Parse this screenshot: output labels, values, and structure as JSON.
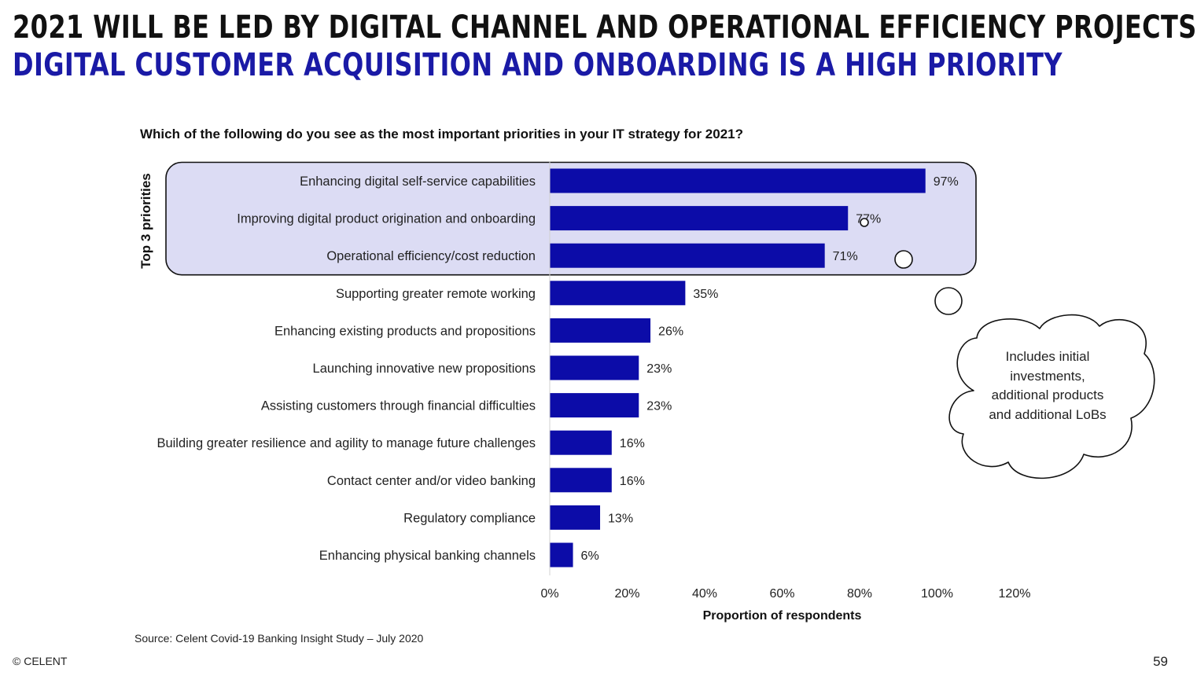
{
  "slide": {
    "title": "2021 WILL BE LED BY DIGITAL CHANNEL AND OPERATIONAL EFFICIENCY PROJECTS",
    "subtitle": "DIGITAL CUSTOMER ACQUISITION AND ONBOARDING IS A HIGH PRIORITY",
    "question": "Which of the following do you see as the most important priorities in your IT strategy for 2021?",
    "source": "Source: Celent Covid-19 Banking Insight Study – July 2020",
    "footer_left": "© CELENT",
    "page_number": "59"
  },
  "colors": {
    "bar": "#0c0ca8",
    "highlight_fill": "#dcdcf4",
    "title": "#111111",
    "subtitle": "#1a1aa6"
  },
  "callouts": {
    "highlight_label": "Top 3 priorities",
    "cloud_text": "Includes initial investments, additional products and additional LoBs"
  },
  "chart_data": {
    "type": "bar",
    "orientation": "horizontal",
    "categories": [
      "Enhancing digital self-service capabilities",
      "Improving digital product origination and onboarding",
      "Operational efficiency/cost reduction",
      "Supporting greater remote working",
      "Enhancing existing products and propositions",
      "Launching innovative new propositions",
      "Assisting customers through financial difficulties",
      "Building greater resilience and agility to manage future challenges",
      "Contact center and/or video banking",
      "Regulatory compliance",
      "Enhancing physical banking channels"
    ],
    "values": [
      97,
      77,
      71,
      35,
      26,
      23,
      23,
      16,
      16,
      13,
      6
    ],
    "data_labels": [
      "97%",
      "77%",
      "71%",
      "35%",
      "26%",
      "23%",
      "23%",
      "16%",
      "16%",
      "13%",
      "6%"
    ],
    "xlabel": "Proportion of respondents",
    "xlim": [
      0,
      120
    ],
    "x_ticks": [
      0,
      20,
      40,
      60,
      80,
      100,
      120
    ],
    "x_tick_labels": [
      "0%",
      "20%",
      "40%",
      "60%",
      "80%",
      "100%",
      "120%"
    ],
    "highlighted_count": 3,
    "grid": false
  }
}
